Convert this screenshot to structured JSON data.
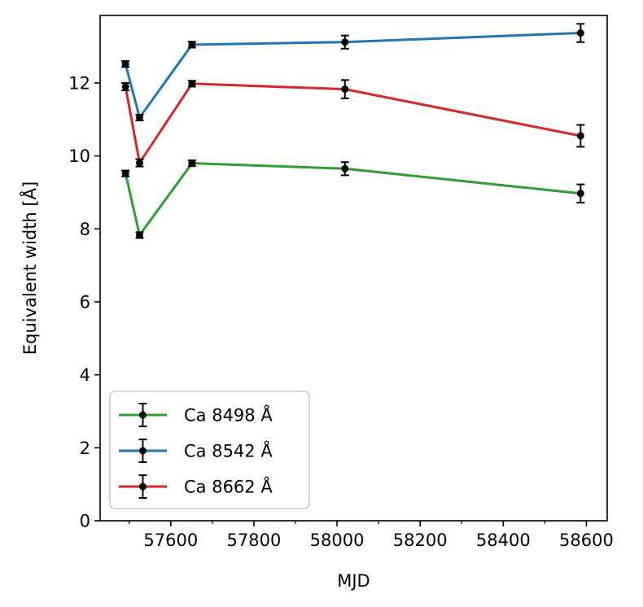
{
  "chart_data": {
    "type": "line",
    "title": "",
    "xlabel": "MJD",
    "ylabel": "Equivalent width [Å]",
    "xlim": [
      57430,
      58650
    ],
    "ylim": [
      0,
      13.85
    ],
    "xticks": [
      57600,
      57800,
      58000,
      58200,
      58400,
      58600
    ],
    "xtick_labels": [
      "57600",
      "57800",
      "58000",
      "58200",
      "58400",
      "58600"
    ],
    "yticks": [
      0,
      2,
      4,
      6,
      8,
      10,
      12
    ],
    "ytick_labels": [
      "0",
      "2",
      "4",
      "6",
      "8",
      "10",
      "12"
    ],
    "legend_position": "lower-left",
    "x": [
      57491,
      57525,
      57651,
      58019,
      58586
    ],
    "series": [
      {
        "name": "Ca 8498 Å",
        "color": "#2ca02c",
        "values": [
          9.52,
          7.83,
          9.8,
          9.65,
          8.97
        ],
        "errors": [
          0.08,
          0.08,
          0.08,
          0.18,
          0.25
        ]
      },
      {
        "name": "Ca 8542 Å",
        "color": "#1f77b4",
        "values": [
          12.52,
          11.05,
          13.05,
          13.12,
          13.37
        ],
        "errors": [
          0.08,
          0.08,
          0.08,
          0.18,
          0.25
        ]
      },
      {
        "name": "Ca 8662 Å",
        "color": "#d62728",
        "values": [
          11.9,
          9.81,
          11.98,
          11.83,
          10.55
        ],
        "errors": [
          0.1,
          0.1,
          0.08,
          0.25,
          0.3
        ]
      }
    ]
  }
}
